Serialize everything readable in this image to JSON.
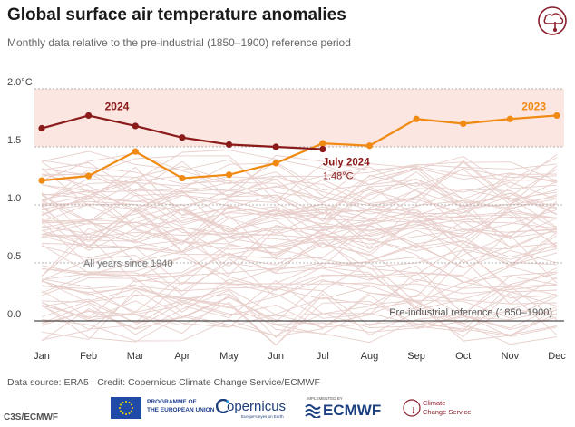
{
  "header": {
    "title": "Global surface air temperature anomalies",
    "subtitle": "Monthly data relative to the pre-industrial (1850–1900) reference period"
  },
  "chart_data": {
    "type": "line",
    "title": "Global surface air temperature anomalies",
    "subtitle": "Monthly data relative to the pre-industrial (1850–1900) reference period",
    "xlabel": "",
    "ylabel": "",
    "categories": [
      "Jan",
      "Feb",
      "Mar",
      "Apr",
      "May",
      "Jun",
      "Jul",
      "Aug",
      "Sep",
      "Oct",
      "Nov",
      "Dec"
    ],
    "ylim": [
      -0.1,
      2.0
    ],
    "yticks": [
      {
        "value": 2.0,
        "label": "2.0°C"
      },
      {
        "value": 1.5,
        "label": "1.5"
      },
      {
        "value": 1.0,
        "label": "1.0"
      },
      {
        "value": 0.5,
        "label": "0.5"
      },
      {
        "value": 0.0,
        "label": "0.0"
      }
    ],
    "band": {
      "from": 1.5,
      "to": 2.0
    },
    "reference_label": "Pre-industrial reference (1850–1900)",
    "background_label": "All years since 1940",
    "series": [
      {
        "name": "2024",
        "color": "#8b1a1a",
        "values": [
          1.66,
          1.77,
          1.68,
          1.58,
          1.52,
          1.5,
          1.48,
          null,
          null,
          null,
          null,
          null
        ]
      },
      {
        "name": "2023",
        "color": "#f08a12",
        "values": [
          1.21,
          1.25,
          1.46,
          1.23,
          1.26,
          1.36,
          1.53,
          1.51,
          1.74,
          1.7,
          1.74,
          1.77
        ]
      }
    ],
    "annotations": [
      {
        "text": "July 2024",
        "month": "Jul",
        "value": 1.48,
        "color": "#8b1a1a"
      },
      {
        "text": "1.48°C",
        "month": "Jul",
        "value": 1.48,
        "color": "#8b1a1a"
      }
    ],
    "grid": true,
    "colors": {
      "band": "#fbe6e1",
      "background_lines": "#e8cfcb",
      "zero_line": "#222222"
    }
  },
  "footer": {
    "source": "Data source: ERA5 · Credit: Copernicus Climate Change Service/ECMWF",
    "credit": "C3S/ECMWF",
    "eu_text": "PROGRAMME OF\nTHE EUROPEAN UNION",
    "copernicus": "opernicus",
    "copernicus_sub": "Europe's eyes on Earth",
    "ecmwf_small": "IMPLEMENTED BY",
    "ecmwf": "ECMWF",
    "ccs": "Climate\nChange Service"
  }
}
